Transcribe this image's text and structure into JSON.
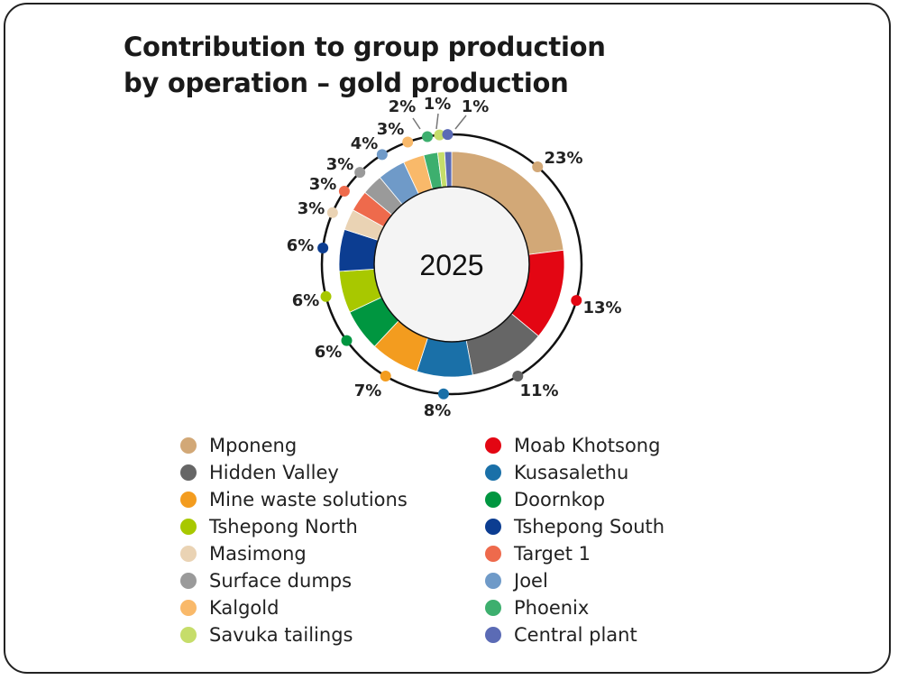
{
  "chart_data": {
    "type": "pie",
    "variant": "donut",
    "title": "Contribution to group production by operation – gold production",
    "center_label": "2025",
    "value_suffix": "%",
    "legend_position": "bottom",
    "slices": [
      {
        "name": "Mponeng",
        "value": 23,
        "color": "#d2a877"
      },
      {
        "name": "Moab Khotsong",
        "value": 13,
        "color": "#e30613"
      },
      {
        "name": "Hidden Valley",
        "value": 11,
        "color": "#666666"
      },
      {
        "name": "Kusasalethu",
        "value": 8,
        "color": "#1a70a8"
      },
      {
        "name": "Mine waste solutions",
        "value": 7,
        "color": "#f39c1f"
      },
      {
        "name": "Doornkop",
        "value": 6,
        "color": "#009640"
      },
      {
        "name": "Tshepong North",
        "value": 6,
        "color": "#a8c800"
      },
      {
        "name": "Tshepong South",
        "value": 6,
        "color": "#0c3d91"
      },
      {
        "name": "Masimong",
        "value": 3,
        "color": "#ead3b4"
      },
      {
        "name": "Target 1",
        "value": 3,
        "color": "#ee6a4c"
      },
      {
        "name": "Surface dumps",
        "value": 3,
        "color": "#9a9a9a"
      },
      {
        "name": "Joel",
        "value": 4,
        "color": "#6f9ac8"
      },
      {
        "name": "Kalgold",
        "value": 3,
        "color": "#f9b96a"
      },
      {
        "name": "Phoenix",
        "value": 2,
        "color": "#3daf6e"
      },
      {
        "name": "Savuka tailings",
        "value": 1,
        "color": "#c6dd6a"
      },
      {
        "name": "Central plant",
        "value": 1,
        "color": "#5b6bb5"
      }
    ],
    "legend_order": [
      "Mponeng",
      "Moab Khotsong",
      "Hidden Valley",
      "Kusasalethu",
      "Mine waste solutions",
      "Doornkop",
      "Tshepong North",
      "Tshepong South",
      "Masimong",
      "Target 1",
      "Surface dumps",
      "Joel",
      "Kalgold",
      "Phoenix",
      "Savuka tailings",
      "Central plant"
    ]
  }
}
